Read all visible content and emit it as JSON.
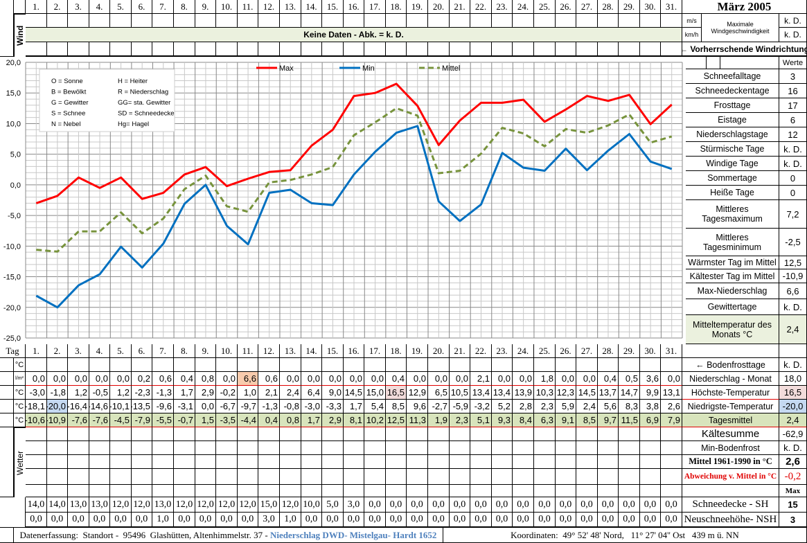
{
  "title": "März 2005",
  "days": [
    "1.",
    "2.",
    "3.",
    "4.",
    "5.",
    "6.",
    "7.",
    "8.",
    "9.",
    "10.",
    "11.",
    "12.",
    "13.",
    "14.",
    "15.",
    "16.",
    "17.",
    "18.",
    "19.",
    "20.",
    "21.",
    "22.",
    "23.",
    "24.",
    "25.",
    "26.",
    "27.",
    "28.",
    "29.",
    "30.",
    "31."
  ],
  "wind": {
    "label": "Wind",
    "no_data": "Keine Daten - Abk. = k. D.",
    "unit_ms": "m/s",
    "unit_kmh": "km/h",
    "max_label_1": "Maximale",
    "max_label_2": "Windgeschwindigkeit",
    "value_ms": "k. D.",
    "value_kmh": "k. D.",
    "direction_label": "← Vorherrschende Windrichtung"
  },
  "stats": {
    "header": "Werte",
    "items": [
      {
        "label": "Schneefalltage",
        "value": "3"
      },
      {
        "label": "Schneedeckentage",
        "value": "16"
      },
      {
        "label": "Frosttage",
        "value": "17"
      },
      {
        "label": "Eistage",
        "value": "6"
      },
      {
        "label": "Niederschlagstage",
        "value": "12"
      },
      {
        "label": "Stürmische Tage",
        "value": "k. D."
      },
      {
        "label": "Windige Tage",
        "value": "k. D."
      },
      {
        "label": "Sommertage",
        "value": "0"
      },
      {
        "label": "Heiße Tage",
        "value": "0"
      },
      {
        "label": "Mittleres Tagesmaximum",
        "value": "7,2"
      },
      {
        "label": "Mittleres Tagesminimum",
        "value": "-2,5"
      },
      {
        "label": "Wärmster Tag im Mittel",
        "value": "12,5"
      },
      {
        "label": "Kältester Tag im Mittel",
        "value": "-10,9"
      },
      {
        "label": "Max-Niederschlag",
        "value": "6,6"
      },
      {
        "label": "Gewittertage",
        "value": "k. D."
      },
      {
        "label": "Mitteltemperatur des Monats °C",
        "value": "2,4"
      }
    ]
  },
  "legend_box": [
    [
      "O = Sonne",
      "H = Heiter"
    ],
    [
      "B = Bewölkt",
      "R = Niederschlag"
    ],
    [
      "G = Gewitter",
      "GG= sta. Gewitter"
    ],
    [
      "S = Schnee",
      "SD = Schneedecke"
    ],
    [
      "N = Nebel",
      "Hg= Hagel"
    ]
  ],
  "chart_data": {
    "type": "line",
    "categories": [
      "1.",
      "2.",
      "3.",
      "4.",
      "5.",
      "6.",
      "7.",
      "8.",
      "9.",
      "10.",
      "11.",
      "12.",
      "13.",
      "14.",
      "15.",
      "16.",
      "17.",
      "18.",
      "19.",
      "20.",
      "21.",
      "22.",
      "23.",
      "24.",
      "25.",
      "26.",
      "27.",
      "28.",
      "29.",
      "30.",
      "31."
    ],
    "ylim": [
      -25,
      20
    ],
    "yticks": [
      "20,0",
      "15,0",
      "10,0",
      "5,0",
      "0,0",
      "-5,0",
      "-10,0",
      "-15,0",
      "-20,0",
      "-25,0"
    ],
    "grid": true,
    "legend": "top",
    "series": [
      {
        "name": "Max",
        "color": "#ff0000",
        "dash": false,
        "values": [
          -3.0,
          -1.8,
          1.2,
          -0.5,
          1.2,
          -2.3,
          -1.3,
          1.7,
          2.9,
          -0.2,
          1.0,
          2.1,
          2.4,
          6.4,
          9.0,
          14.5,
          15.0,
          16.5,
          12.9,
          6.5,
          10.5,
          13.4,
          13.4,
          13.9,
          10.3,
          12.3,
          14.5,
          13.7,
          14.7,
          9.9,
          13.1
        ]
      },
      {
        "name": "Min",
        "color": "#0070c0",
        "dash": false,
        "values": [
          -18.1,
          -20.0,
          -16.4,
          -14.6,
          -10.1,
          -13.5,
          -9.6,
          -3.1,
          0.0,
          -6.7,
          -9.7,
          -1.3,
          -0.8,
          -3.0,
          -3.3,
          1.7,
          5.4,
          8.5,
          9.6,
          -2.7,
          -5.9,
          -3.2,
          5.2,
          2.8,
          2.3,
          5.9,
          2.4,
          5.6,
          8.3,
          3.8,
          2.6
        ]
      },
      {
        "name": "Mittel",
        "color": "#77933c",
        "dash": true,
        "values": [
          -10.6,
          -10.9,
          -7.6,
          -7.6,
          -4.5,
          -7.9,
          -5.5,
          -0.7,
          1.5,
          -3.5,
          -4.4,
          0.4,
          0.8,
          1.7,
          2.9,
          8.1,
          10.2,
          12.5,
          11.3,
          1.9,
          2.3,
          5.1,
          9.3,
          8.4,
          6.3,
          9.1,
          8.5,
          9.7,
          11.5,
          6.9,
          7.9
        ]
      }
    ]
  },
  "table": {
    "tag_label": "Tag",
    "unit_c": "°C",
    "unit_lm2": "l/m²",
    "weather_label": "Wetter",
    "precip": [
      "0,0",
      "0,0",
      "0,0",
      "0,0",
      "0,0",
      "0,2",
      "0,6",
      "0,4",
      "0,8",
      "0,0",
      "6,6",
      "0,6",
      "0,0",
      "0,0",
      "0,0",
      "0,0",
      "0,0",
      "0,4",
      "0,0",
      "0,0",
      "0,0",
      "2,1",
      "0,0",
      "0,0",
      "1,8",
      "0,0",
      "0,0",
      "0,4",
      "0,5",
      "3,6",
      "0,0"
    ],
    "max": [
      "-3,0",
      "-1,8",
      "1,2",
      "-0,5",
      "1,2",
      "-2,3",
      "-1,3",
      "1,7",
      "2,9",
      "-0,2",
      "1,0",
      "2,1",
      "2,4",
      "6,4",
      "9,0",
      "14,5",
      "15,0",
      "16,5",
      "12,9",
      "6,5",
      "10,5",
      "13,4",
      "13,4",
      "13,9",
      "10,3",
      "12,3",
      "14,5",
      "13,7",
      "14,7",
      "9,9",
      "13,1"
    ],
    "min": [
      "-18,1",
      "-20,0",
      "-16,4",
      "-14,6",
      "-10,1",
      "-13,5",
      "-9,6",
      "-3,1",
      "0,0",
      "-6,7",
      "-9,7",
      "-1,3",
      "-0,8",
      "-3,0",
      "-3,3",
      "1,7",
      "5,4",
      "8,5",
      "9,6",
      "-2,7",
      "-5,9",
      "-3,2",
      "5,2",
      "2,8",
      "2,3",
      "5,9",
      "2,4",
      "5,6",
      "8,3",
      "3,8",
      "2,6"
    ],
    "mittel": [
      "-10,6",
      "-10,9",
      "-7,6",
      "-7,6",
      "-4,5",
      "-7,9",
      "-5,5",
      "-0,7",
      "1,5",
      "-3,5",
      "-4,4",
      "0,4",
      "0,8",
      "1,7",
      "2,9",
      "8,1",
      "10,2",
      "12,5",
      "11,3",
      "1,9",
      "2,3",
      "5,1",
      "9,3",
      "8,4",
      "6,3",
      "9,1",
      "8,5",
      "9,7",
      "11,5",
      "6,9",
      "7,9"
    ],
    "snow_sh": [
      "14,0",
      "14,0",
      "13,0",
      "13,0",
      "12,0",
      "12,0",
      "13,0",
      "12,0",
      "12,0",
      "12,0",
      "12,0",
      "15,0",
      "12,0",
      "10,0",
      "5,0",
      "3,0",
      "0,0",
      "0,0",
      "0,0",
      "0,0",
      "0,0",
      "0,0",
      "0,0",
      "0,0",
      "0,0",
      "0,0",
      "0,0",
      "0,0",
      "0,0",
      "0,0",
      "0,0"
    ],
    "snow_nsh": [
      "0,0",
      "0,0",
      "0,0",
      "0,0",
      "0,0",
      "0,0",
      "1,0",
      "0,0",
      "0,0",
      "0,0",
      "0,0",
      "3,0",
      "1,0",
      "0,0",
      "0,0",
      "0,0",
      "0,0",
      "0,0",
      "0,0",
      "0,0",
      "0,0",
      "0,0",
      "0,0",
      "0,0",
      "0,0",
      "0,0",
      "0,0",
      "0,0",
      "0,0",
      "0,0",
      "0,0"
    ]
  },
  "summary": [
    {
      "label": "← Bodenfrosttage",
      "value": "k. D."
    },
    {
      "label": "Niederschlag - Monat",
      "value": "18,0"
    },
    {
      "label": "Höchste-Temperatur",
      "value": "16,5"
    },
    {
      "label": "Niedrigste-Temperatur",
      "value": "-20,0"
    },
    {
      "label": "Tagesmittel",
      "value": "2,4"
    },
    {
      "label": "Kältesumme",
      "value": "-62,9"
    },
    {
      "label": "Min-Bodenfrost",
      "value": "k. D."
    },
    {
      "label": "Mittel 1961-1990 in °C",
      "value": "2,6"
    },
    {
      "label": "Abweichung v. Mittel in °C",
      "value": "-0,2"
    },
    {
      "label": "",
      "value": "Max"
    },
    {
      "label": "Schneedecke -   SH",
      "value": "15"
    },
    {
      "label": "Neuschneehöhe- NSH",
      "value": "3"
    }
  ],
  "footer": {
    "left": "Datenerfassung:  Standort -  95496  Glashütten, Altenhimmelstr. 37 - ",
    "left_highlight": "Niederschlag DWD- Mistelgau- Hardt 1652",
    "right": "Koordinaten:  49° 52' 48' Nord,   11° 27' 04'' Ost   439 m ü. NN",
    "highlight_color": "#4f81bd"
  }
}
